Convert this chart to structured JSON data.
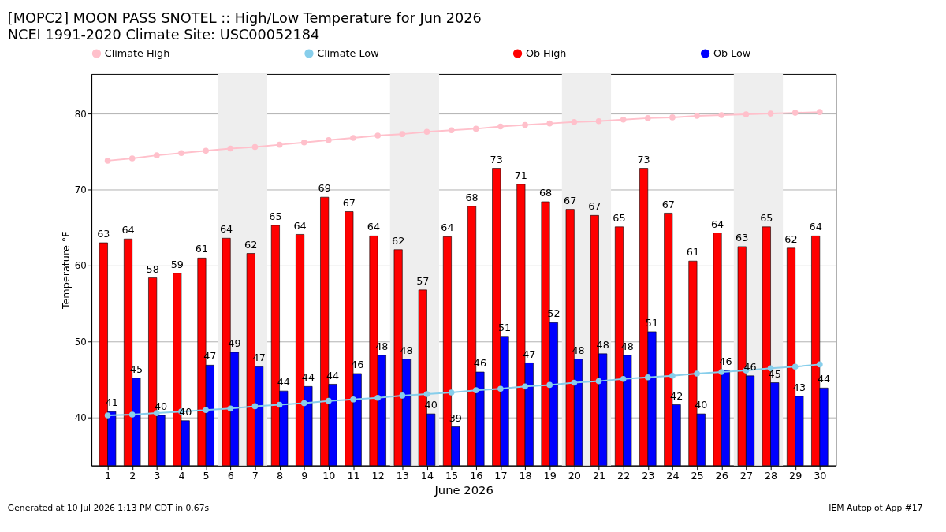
{
  "chart_data": {
    "type": "bar",
    "title": "[MOPC2] MOON PASS SNOTEL :: High/Low Temperature for Jun 2026",
    "subtitle": "NCEI 1991-2020 Climate Site: USC00052184",
    "xlabel": "June 2026",
    "ylabel": "Temperature °F",
    "x": [
      1,
      2,
      3,
      4,
      5,
      6,
      7,
      8,
      9,
      10,
      11,
      12,
      13,
      14,
      15,
      16,
      17,
      18,
      19,
      20,
      21,
      22,
      23,
      24,
      25,
      26,
      27,
      28,
      29,
      30
    ],
    "xlim": [
      0.5,
      30.5
    ],
    "xticks": [
      1,
      2,
      3,
      4,
      5,
      6,
      7,
      8,
      9,
      10,
      11,
      12,
      13,
      14,
      15,
      16,
      17,
      18,
      19,
      20,
      21,
      22,
      23,
      24,
      25,
      26,
      27,
      28,
      29,
      30
    ],
    "ylim": [
      33.7,
      85.2
    ],
    "yticks": [
      40,
      50,
      60,
      70,
      80
    ],
    "grid": "y",
    "legend": "top",
    "marker": "circle",
    "line_style": "solid",
    "series": [
      {
        "name": "Climate High",
        "type": "line",
        "color": "#ffc0cb",
        "values": [
          73.8,
          74.1,
          74.5,
          74.8,
          75.1,
          75.4,
          75.6,
          75.9,
          76.2,
          76.5,
          76.8,
          77.1,
          77.3,
          77.6,
          77.8,
          78.0,
          78.3,
          78.5,
          78.7,
          78.9,
          79.0,
          79.2,
          79.4,
          79.5,
          79.7,
          79.8,
          79.9,
          80.0,
          80.1,
          80.2
        ]
      },
      {
        "name": "Climate Low",
        "type": "line",
        "color": "#87ceeb",
        "values": [
          40.3,
          40.4,
          40.6,
          40.8,
          41.0,
          41.2,
          41.5,
          41.7,
          41.9,
          42.2,
          42.4,
          42.6,
          42.9,
          43.1,
          43.3,
          43.6,
          43.8,
          44.1,
          44.3,
          44.6,
          44.8,
          45.1,
          45.3,
          45.5,
          45.8,
          46.0,
          46.2,
          46.5,
          46.7,
          47.0
        ]
      },
      {
        "name": "Ob High",
        "color": "#ff0000",
        "values": [
          63.0,
          63.5,
          58.4,
          59.0,
          61.0,
          63.6,
          61.6,
          65.3,
          64.1,
          69.0,
          67.1,
          63.9,
          62.1,
          56.8,
          63.8,
          67.8,
          72.8,
          70.7,
          68.4,
          67.4,
          66.6,
          65.1,
          72.8,
          66.9,
          60.6,
          64.3,
          62.5,
          65.1,
          62.3,
          63.9
        ],
        "value_labels": [
          "63",
          "64",
          "58",
          "59",
          "61",
          "64",
          "62",
          "65",
          "64",
          "69",
          "67",
          "64",
          "62",
          "57",
          "64",
          "68",
          "73",
          "71",
          "68",
          "67",
          "67",
          "65",
          "73",
          "67",
          "61",
          "64",
          "63",
          "65",
          "62",
          "64"
        ]
      },
      {
        "name": "Ob Low",
        "color": "#0000ff",
        "values": [
          40.8,
          45.2,
          40.3,
          39.6,
          46.9,
          48.6,
          46.7,
          43.5,
          44.1,
          44.4,
          45.8,
          48.2,
          47.7,
          40.5,
          38.8,
          46.0,
          50.7,
          47.2,
          52.5,
          47.7,
          48.4,
          48.2,
          51.3,
          41.7,
          40.5,
          46.2,
          45.5,
          44.6,
          42.8,
          43.9
        ],
        "value_labels": [
          "41",
          "45",
          "40",
          "40",
          "47",
          "49",
          "47",
          "44",
          "44",
          "44",
          "46",
          "48",
          "48",
          "40",
          "39",
          "46",
          "51",
          "47",
          "52",
          "48",
          "48",
          "48",
          "51",
          "42",
          "40",
          "46",
          "46",
          "45",
          "43",
          "44"
        ]
      }
    ],
    "bands": [
      {
        "axis": "x",
        "from": 5.5,
        "to": 7.5,
        "color": "#eeeeee"
      },
      {
        "axis": "x",
        "from": 12.5,
        "to": 14.5,
        "color": "#eeeeee"
      },
      {
        "axis": "x",
        "from": 19.5,
        "to": 21.5,
        "color": "#eeeeee"
      },
      {
        "axis": "x",
        "from": 26.5,
        "to": 28.5,
        "color": "#eeeeee"
      }
    ],
    "annotations": [
      "Generated at 10 Jul 2026 1:13 PM CDT in 0.67s",
      "IEM Autoplot App #17"
    ]
  }
}
